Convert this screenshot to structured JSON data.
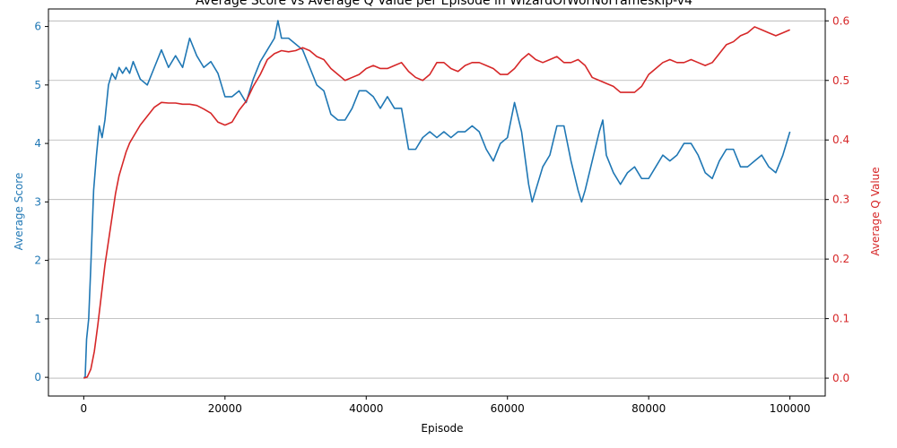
{
  "chart_data": {
    "type": "line",
    "title": "Average Score vs Average Q Value per Episode in WizardOfWorNoFrameskip-v4",
    "xlabel": "Episode",
    "ylabel_left": "Average Score",
    "ylabel_right": "Average Q Value",
    "xlim": [
      -5000,
      105000
    ],
    "ylim_left": [
      -0.32,
      6.3
    ],
    "ylim_right": [
      -0.03,
      0.62
    ],
    "x_ticks": [
      0,
      20000,
      40000,
      60000,
      80000,
      100000
    ],
    "x_tick_labels": [
      "0",
      "20000",
      "40000",
      "60000",
      "80000",
      "100000"
    ],
    "y_left_ticks": [
      0,
      1,
      2,
      3,
      4,
      5,
      6
    ],
    "y_left_tick_labels": [
      "0",
      "1",
      "2",
      "3",
      "4",
      "5",
      "6"
    ],
    "y_right_ticks": [
      0.0,
      0.1,
      0.2,
      0.3,
      0.4,
      0.5,
      0.6
    ],
    "y_right_tick_labels": [
      "0.0",
      "0.1",
      "0.2",
      "0.3",
      "0.4",
      "0.5",
      "0.6"
    ],
    "grid": "horizontal",
    "colors": {
      "score": "#1f77b4",
      "q": "#d62728",
      "grid": "#b0b0b0",
      "axis": "#000000"
    },
    "series": [
      {
        "axis": "left",
        "color": "#1f77b4",
        "x": [
          0,
          200,
          400,
          700,
          1000,
          1400,
          1800,
          2200,
          2600,
          3000,
          3500,
          4000,
          4500,
          5000,
          5500,
          6000,
          6500,
          7000,
          8000,
          9000,
          10000,
          11000,
          12000,
          13000,
          14000,
          15000,
          16000,
          17000,
          18000,
          19000,
          19500,
          20000,
          21000,
          22000,
          23000,
          24000,
          25000,
          26000,
          27000,
          27500,
          28000,
          29000,
          30000,
          31000,
          32000,
          33000,
          34000,
          35000,
          36000,
          37000,
          38000,
          39000,
          40000,
          41000,
          42000,
          43000,
          44000,
          45000,
          46000,
          47000,
          48000,
          49000,
          50000,
          51000,
          52000,
          53000,
          54000,
          55000,
          56000,
          57000,
          58000,
          59000,
          60000,
          61000,
          62000,
          63000,
          63500,
          64000,
          65000,
          66000,
          67000,
          68000,
          69000,
          70000,
          70500,
          71000,
          72000,
          73000,
          73500,
          74000,
          75000,
          76000,
          77000,
          78000,
          79000,
          80000,
          81000,
          82000,
          83000,
          84000,
          85000,
          86000,
          87000,
          88000,
          89000,
          90000,
          91000,
          92000,
          93000,
          94000,
          95000,
          96000,
          97000,
          98000,
          99000,
          100000
        ],
        "y": [
          0.0,
          0.0,
          0.65,
          1.0,
          1.9,
          3.2,
          3.8,
          4.3,
          4.1,
          4.4,
          5.0,
          5.2,
          5.1,
          5.3,
          5.2,
          5.3,
          5.2,
          5.4,
          5.1,
          5.0,
          5.3,
          5.6,
          5.3,
          5.5,
          5.3,
          5.8,
          5.5,
          5.3,
          5.4,
          5.2,
          5.0,
          4.8,
          4.8,
          4.9,
          4.7,
          5.1,
          5.4,
          5.6,
          5.8,
          6.1,
          5.8,
          5.8,
          5.7,
          5.6,
          5.3,
          5.0,
          4.9,
          4.5,
          4.4,
          4.4,
          4.6,
          4.9,
          4.9,
          4.8,
          4.6,
          4.8,
          4.6,
          4.6,
          3.9,
          3.9,
          4.1,
          4.2,
          4.1,
          4.2,
          4.1,
          4.2,
          4.2,
          4.3,
          4.2,
          3.9,
          3.7,
          4.0,
          4.1,
          4.7,
          4.2,
          3.3,
          3.0,
          3.2,
          3.6,
          3.8,
          4.3,
          4.3,
          3.7,
          3.2,
          3.0,
          3.2,
          3.7,
          4.2,
          4.4,
          3.8,
          3.5,
          3.3,
          3.5,
          3.6,
          3.4,
          3.4,
          3.6,
          3.8,
          3.7,
          3.8,
          4.0,
          4.0,
          3.8,
          3.5,
          3.4,
          3.7,
          3.9,
          3.9,
          3.6,
          3.6,
          3.7,
          3.8,
          3.6,
          3.5,
          3.8,
          4.2
        ]
      },
      {
        "axis": "right",
        "color": "#d62728",
        "x": [
          0,
          500,
          1000,
          1500,
          2000,
          2500,
          3000,
          3500,
          4000,
          4500,
          5000,
          5500,
          6000,
          6500,
          7000,
          7500,
          8000,
          9000,
          10000,
          11000,
          12000,
          13000,
          14000,
          15000,
          16000,
          17000,
          18000,
          19000,
          20000,
          21000,
          22000,
          23000,
          24000,
          25000,
          26000,
          27000,
          28000,
          29000,
          30000,
          31000,
          32000,
          33000,
          34000,
          35000,
          36000,
          37000,
          38000,
          39000,
          40000,
          41000,
          42000,
          43000,
          44000,
          45000,
          46000,
          47000,
          48000,
          49000,
          50000,
          51000,
          52000,
          53000,
          54000,
          55000,
          56000,
          57000,
          58000,
          59000,
          60000,
          61000,
          62000,
          63000,
          64000,
          65000,
          66000,
          67000,
          68000,
          69000,
          70000,
          71000,
          72000,
          73000,
          74000,
          75000,
          76000,
          77000,
          78000,
          79000,
          80000,
          81000,
          82000,
          83000,
          84000,
          85000,
          86000,
          87000,
          88000,
          89000,
          90000,
          91000,
          92000,
          93000,
          94000,
          95000,
          96000,
          97000,
          98000,
          99000,
          100000
        ],
        "y": [
          0.0,
          0.002,
          0.015,
          0.045,
          0.09,
          0.14,
          0.19,
          0.23,
          0.27,
          0.31,
          0.34,
          0.36,
          0.38,
          0.395,
          0.405,
          0.415,
          0.425,
          0.44,
          0.455,
          0.463,
          0.462,
          0.462,
          0.46,
          0.46,
          0.458,
          0.452,
          0.445,
          0.43,
          0.425,
          0.43,
          0.45,
          0.465,
          0.49,
          0.51,
          0.535,
          0.545,
          0.55,
          0.548,
          0.55,
          0.555,
          0.55,
          0.54,
          0.535,
          0.52,
          0.51,
          0.5,
          0.505,
          0.51,
          0.52,
          0.525,
          0.52,
          0.52,
          0.525,
          0.53,
          0.515,
          0.505,
          0.5,
          0.51,
          0.53,
          0.53,
          0.52,
          0.515,
          0.525,
          0.53,
          0.53,
          0.525,
          0.52,
          0.51,
          0.51,
          0.52,
          0.535,
          0.545,
          0.535,
          0.53,
          0.535,
          0.54,
          0.53,
          0.53,
          0.535,
          0.525,
          0.505,
          0.5,
          0.495,
          0.49,
          0.48,
          0.48,
          0.48,
          0.49,
          0.51,
          0.52,
          0.53,
          0.535,
          0.53,
          0.53,
          0.535,
          0.53,
          0.525,
          0.53,
          0.545,
          0.56,
          0.565,
          0.575,
          0.58,
          0.59,
          0.585,
          0.58,
          0.575,
          0.58,
          0.585
        ]
      }
    ]
  }
}
